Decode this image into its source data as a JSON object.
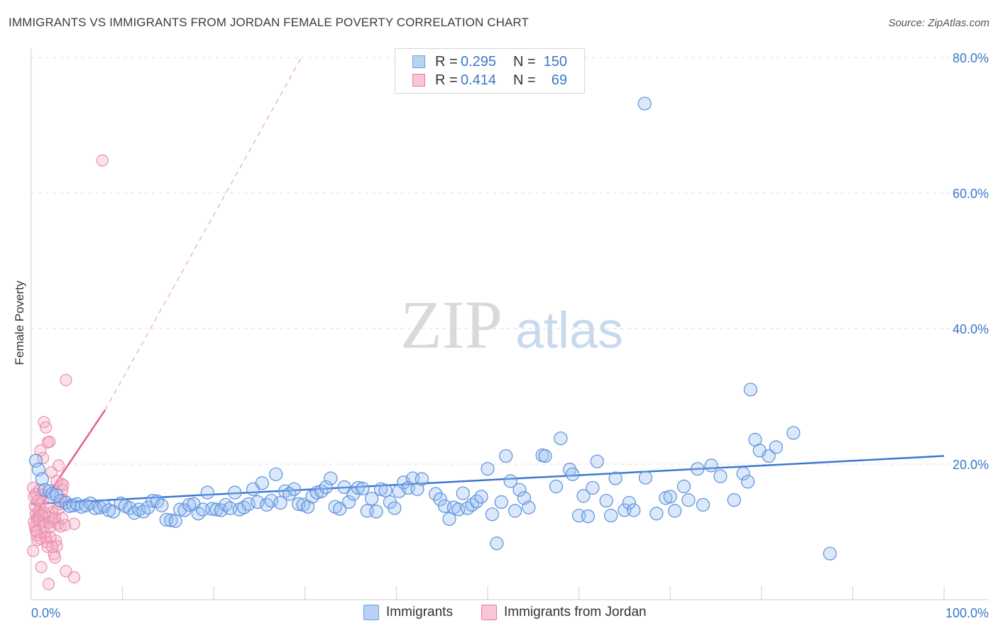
{
  "title": "IMMIGRANTS VS IMMIGRANTS FROM JORDAN FEMALE POVERTY CORRELATION CHART",
  "source": "Source: ZipAtlas.com",
  "watermark": {
    "zip": "ZIP",
    "atlas": "atlas"
  },
  "legend": {
    "rows": [
      {
        "r_label": "R =",
        "r_value": "0.295",
        "n_label": "N =",
        "n_value": "150",
        "color": "#6f9fe0",
        "fill": "#b9d2f3"
      },
      {
        "r_label": "R =",
        "r_value": "0.414",
        "n_label": "N =",
        "n_value": "69",
        "color": "#e87aa0",
        "fill": "#f8c6d5"
      }
    ]
  },
  "bottom_legend": [
    {
      "label": "Immigrants",
      "color": "#6f9fe0",
      "fill": "#b9d2f3"
    },
    {
      "label": "Immigrants from Jordan",
      "color": "#e87aa0",
      "fill": "#f8c6d5"
    }
  ],
  "chart_data": {
    "type": "scatter",
    "xlabel": "",
    "ylabel": "Female Poverty",
    "xlim": [
      0,
      100
    ],
    "ylim": [
      0,
      80
    ],
    "x_tick_labels": [
      {
        "value": 0,
        "label": "0.0%"
      },
      {
        "value": 100,
        "label": "100.0%"
      }
    ],
    "y_tick_labels": [
      {
        "value": 20,
        "label": "20.0%"
      },
      {
        "value": 40,
        "label": "40.0%"
      },
      {
        "value": 60,
        "label": "60.0%"
      },
      {
        "value": 80,
        "label": "80.0%"
      }
    ],
    "grid": true,
    "series": [
      {
        "name": "Immigrants",
        "color": "#3a78d4",
        "trend": {
          "x": [
            0,
            100
          ],
          "y": [
            14.1,
            21.2
          ]
        },
        "points": [
          [
            0.5,
            20.5
          ],
          [
            0.8,
            19.2
          ],
          [
            1.2,
            17.8
          ],
          [
            1.5,
            16.2
          ],
          [
            2.0,
            16.0
          ],
          [
            2.3,
            15.6
          ],
          [
            2.8,
            15.4
          ],
          [
            3.2,
            14.6
          ],
          [
            3.8,
            14.3
          ],
          [
            4.2,
            13.8
          ],
          [
            4.6,
            13.9
          ],
          [
            5.0,
            14.1
          ],
          [
            5.5,
            13.7
          ],
          [
            6.0,
            13.9
          ],
          [
            6.5,
            14.2
          ],
          [
            7.0,
            13.5
          ],
          [
            7.5,
            13.6
          ],
          [
            8.0,
            13.8
          ],
          [
            8.5,
            13.2
          ],
          [
            9.0,
            13.0
          ],
          [
            9.8,
            14.2
          ],
          [
            10.3,
            13.8
          ],
          [
            10.8,
            13.5
          ],
          [
            11.3,
            12.8
          ],
          [
            11.8,
            13.3
          ],
          [
            12.3,
            13.0
          ],
          [
            12.8,
            13.6
          ],
          [
            13.3,
            14.6
          ],
          [
            13.8,
            14.5
          ],
          [
            14.3,
            13.9
          ],
          [
            14.8,
            11.8
          ],
          [
            15.3,
            11.7
          ],
          [
            15.8,
            11.6
          ],
          [
            16.3,
            13.3
          ],
          [
            16.8,
            13.2
          ],
          [
            17.3,
            14.0
          ],
          [
            17.8,
            14.1
          ],
          [
            18.3,
            12.7
          ],
          [
            18.8,
            13.3
          ],
          [
            19.3,
            15.8
          ],
          [
            19.8,
            13.4
          ],
          [
            20.3,
            13.3
          ],
          [
            20.8,
            13.2
          ],
          [
            21.3,
            14.0
          ],
          [
            21.8,
            13.5
          ],
          [
            22.3,
            15.8
          ],
          [
            22.8,
            13.3
          ],
          [
            23.3,
            13.6
          ],
          [
            23.8,
            14.1
          ],
          [
            24.3,
            16.3
          ],
          [
            24.8,
            14.4
          ],
          [
            25.3,
            17.2
          ],
          [
            25.8,
            14.0
          ],
          [
            26.3,
            14.6
          ],
          [
            26.8,
            18.5
          ],
          [
            27.3,
            14.3
          ],
          [
            27.8,
            16.0
          ],
          [
            28.3,
            15.6
          ],
          [
            28.8,
            16.3
          ],
          [
            29.3,
            14.1
          ],
          [
            29.8,
            14.0
          ],
          [
            30.3,
            13.7
          ],
          [
            30.8,
            15.2
          ],
          [
            31.3,
            15.8
          ],
          [
            31.8,
            16.0
          ],
          [
            32.3,
            16.6
          ],
          [
            32.8,
            17.9
          ],
          [
            33.3,
            13.7
          ],
          [
            33.8,
            13.4
          ],
          [
            34.3,
            16.6
          ],
          [
            34.8,
            14.4
          ],
          [
            35.3,
            15.6
          ],
          [
            35.8,
            16.5
          ],
          [
            36.3,
            16.4
          ],
          [
            36.8,
            13.1
          ],
          [
            37.3,
            14.9
          ],
          [
            37.8,
            13.0
          ],
          [
            38.3,
            16.3
          ],
          [
            38.8,
            16.1
          ],
          [
            39.3,
            14.4
          ],
          [
            39.8,
            13.5
          ],
          [
            40.3,
            16.0
          ],
          [
            40.8,
            17.3
          ],
          [
            41.3,
            16.5
          ],
          [
            41.8,
            17.9
          ],
          [
            42.3,
            16.3
          ],
          [
            42.8,
            17.8
          ],
          [
            44.3,
            15.6
          ],
          [
            44.8,
            14.8
          ],
          [
            45.3,
            13.8
          ],
          [
            45.8,
            11.9
          ],
          [
            46.3,
            13.6
          ],
          [
            46.8,
            13.3
          ],
          [
            47.3,
            15.7
          ],
          [
            47.8,
            13.5
          ],
          [
            48.3,
            14.0
          ],
          [
            48.8,
            14.5
          ],
          [
            49.3,
            15.2
          ],
          [
            50.0,
            19.3
          ],
          [
            50.5,
            12.6
          ],
          [
            51.0,
            8.3
          ],
          [
            51.5,
            14.4
          ],
          [
            52.0,
            21.2
          ],
          [
            52.5,
            17.5
          ],
          [
            53.0,
            13.1
          ],
          [
            53.5,
            16.2
          ],
          [
            54.0,
            15.0
          ],
          [
            54.5,
            13.6
          ],
          [
            56.0,
            21.3
          ],
          [
            56.3,
            21.2
          ],
          [
            57.5,
            16.7
          ],
          [
            58.0,
            23.8
          ],
          [
            59.0,
            19.2
          ],
          [
            59.3,
            18.5
          ],
          [
            60.0,
            12.4
          ],
          [
            60.5,
            15.3
          ],
          [
            61.0,
            12.3
          ],
          [
            61.5,
            16.5
          ],
          [
            62.0,
            20.4
          ],
          [
            63.0,
            14.6
          ],
          [
            63.5,
            12.4
          ],
          [
            64.0,
            17.9
          ],
          [
            65.0,
            13.2
          ],
          [
            65.5,
            14.3
          ],
          [
            66.0,
            13.2
          ],
          [
            67.3,
            18.0
          ],
          [
            68.5,
            12.7
          ],
          [
            69.5,
            15.0
          ],
          [
            70.0,
            15.2
          ],
          [
            70.5,
            13.1
          ],
          [
            71.5,
            16.7
          ],
          [
            72.0,
            14.7
          ],
          [
            73.0,
            19.3
          ],
          [
            73.6,
            14.0
          ],
          [
            74.5,
            19.8
          ],
          [
            75.5,
            18.2
          ],
          [
            77.0,
            14.7
          ],
          [
            78.0,
            18.6
          ],
          [
            78.5,
            17.4
          ],
          [
            78.8,
            31.0
          ],
          [
            79.3,
            23.6
          ],
          [
            79.8,
            22.0
          ],
          [
            80.8,
            21.2
          ],
          [
            81.6,
            22.5
          ],
          [
            83.5,
            24.6
          ],
          [
            87.5,
            6.8
          ],
          [
            67.2,
            73.2
          ]
        ]
      },
      {
        "name": "Immigrants from Jordan",
        "color": "#e2608c",
        "trend": {
          "x": [
            0,
            8.1
          ],
          "y": [
            11.8,
            28.0
          ]
        },
        "trend_dashed": {
          "x": [
            8.1,
            29.6
          ],
          "y": [
            28.0,
            80.0
          ]
        },
        "points": [
          [
            0.2,
            16.5
          ],
          [
            0.3,
            15.2
          ],
          [
            0.4,
            13.8
          ],
          [
            0.5,
            12.6
          ],
          [
            0.6,
            11.9
          ],
          [
            0.3,
            11.5
          ],
          [
            0.4,
            10.8
          ],
          [
            0.5,
            10.2
          ],
          [
            0.6,
            9.5
          ],
          [
            0.7,
            8.8
          ],
          [
            0.8,
            12.3
          ],
          [
            0.9,
            11.7
          ],
          [
            1.0,
            13.4
          ],
          [
            1.1,
            14.4
          ],
          [
            1.2,
            15.5
          ],
          [
            1.3,
            11.6
          ],
          [
            1.4,
            10.9
          ],
          [
            1.5,
            9.8
          ],
          [
            1.6,
            9.1
          ],
          [
            1.7,
            8.5
          ],
          [
            1.8,
            7.8
          ],
          [
            1.9,
            12.2
          ],
          [
            2.0,
            11.4
          ],
          [
            2.1,
            10.7
          ],
          [
            2.2,
            18.8
          ],
          [
            2.3,
            12.9
          ],
          [
            2.4,
            11.8
          ],
          [
            2.5,
            6.7
          ],
          [
            2.6,
            6.2
          ],
          [
            2.7,
            8.7
          ],
          [
            2.8,
            7.9
          ],
          [
            2.9,
            11.2
          ],
          [
            3.0,
            13.4
          ],
          [
            3.1,
            14.1
          ],
          [
            3.2,
            10.8
          ],
          [
            3.3,
            17.1
          ],
          [
            3.4,
            16.2
          ],
          [
            3.5,
            16.9
          ],
          [
            3.6,
            14.7
          ],
          [
            3.7,
            11.0
          ],
          [
            1.4,
            26.2
          ],
          [
            1.6,
            25.4
          ],
          [
            1.8,
            23.2
          ],
          [
            2.0,
            23.3
          ],
          [
            1.3,
            20.9
          ],
          [
            1.0,
            22.0
          ],
          [
            3.8,
            32.4
          ],
          [
            1.1,
            4.8
          ],
          [
            1.9,
            2.3
          ],
          [
            3.8,
            4.2
          ],
          [
            4.7,
            3.3
          ],
          [
            4.7,
            11.2
          ],
          [
            7.8,
            64.8
          ],
          [
            0.5,
            15.6
          ],
          [
            0.8,
            13.0
          ],
          [
            1.2,
            12.5
          ],
          [
            0.7,
            14.6
          ],
          [
            1.5,
            12.8
          ],
          [
            2.1,
            9.2
          ],
          [
            2.3,
            7.8
          ],
          [
            0.9,
            16.2
          ],
          [
            1.7,
            13.7
          ],
          [
            2.6,
            12.1
          ],
          [
            3.4,
            12.0
          ],
          [
            0.6,
            10.0
          ],
          [
            1.0,
            9.0
          ],
          [
            3.0,
            19.8
          ],
          [
            2.8,
            17.5
          ],
          [
            0.2,
            7.2
          ]
        ]
      }
    ]
  }
}
